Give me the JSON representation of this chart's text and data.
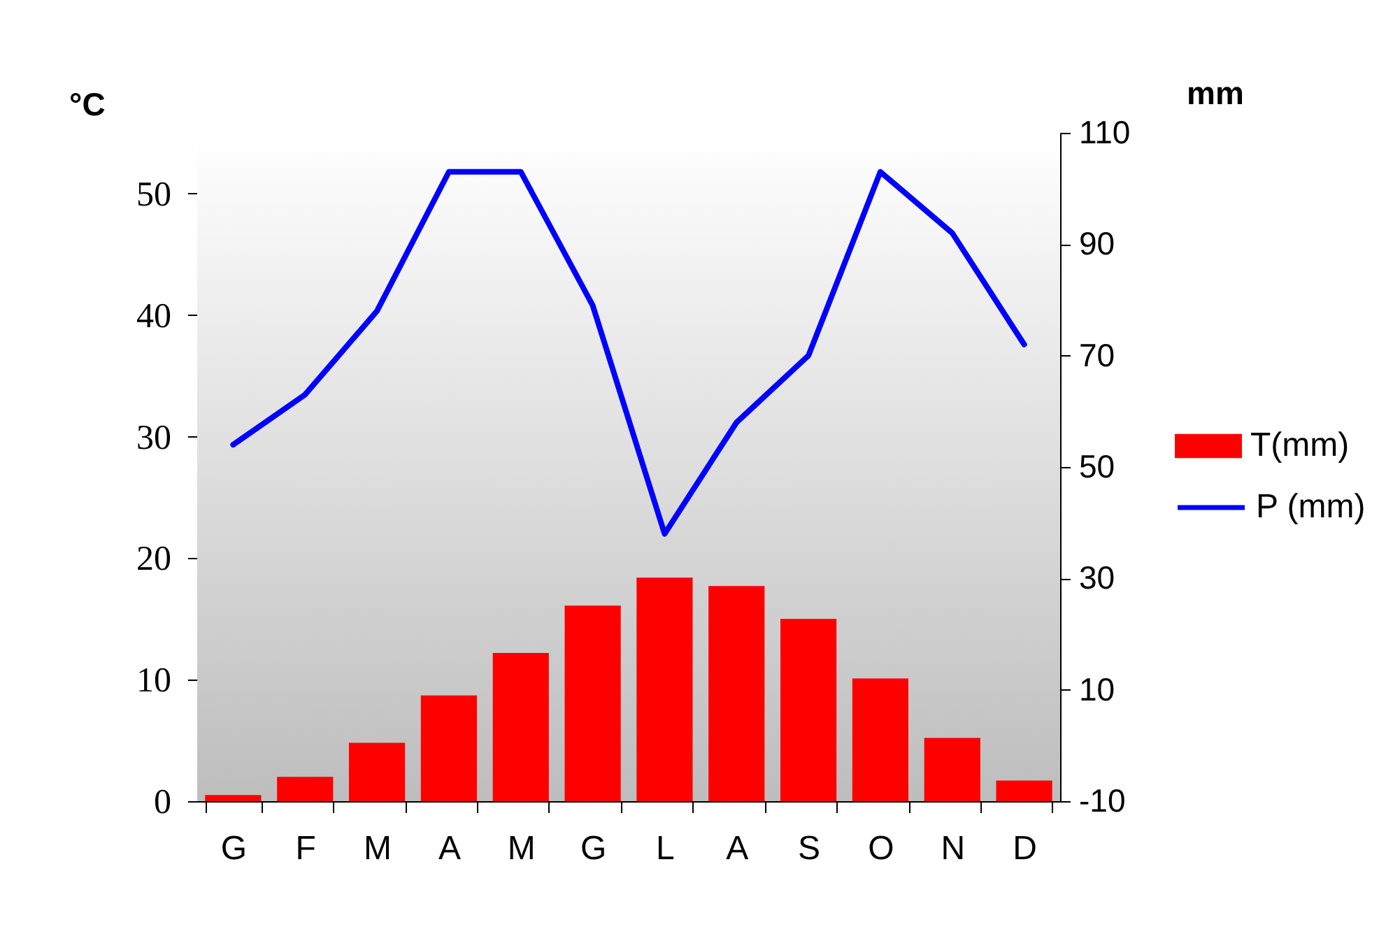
{
  "chart_data": {
    "type": "bar",
    "categories": [
      "G",
      "F",
      "M",
      "A",
      "M",
      "G",
      "L",
      "A",
      "S",
      "O",
      "N",
      "D"
    ],
    "series": [
      {
        "name": "T(mm)",
        "color": "#ff0000",
        "values": [
          0.5,
          2.0,
          4.8,
          8.7,
          12.2,
          16.1,
          18.4,
          17.7,
          15.0,
          10.1,
          5.2,
          1.7
        ]
      },
      {
        "name": "P (mm)",
        "type": "line",
        "axis": "y2",
        "color": "#0000ff",
        "values": [
          54,
          63,
          78,
          103,
          103,
          79,
          38,
          58,
          70,
          103,
          92,
          72
        ]
      }
    ],
    "ylabel": "°C",
    "y2label": "mm",
    "ylim": [
      0,
      55
    ],
    "yticks": [
      0,
      10,
      20,
      30,
      40,
      50
    ],
    "y2lim": [
      -10,
      110
    ],
    "y2ticks": [
      -10,
      10,
      30,
      50,
      70,
      90,
      110
    ],
    "legend": "right"
  }
}
